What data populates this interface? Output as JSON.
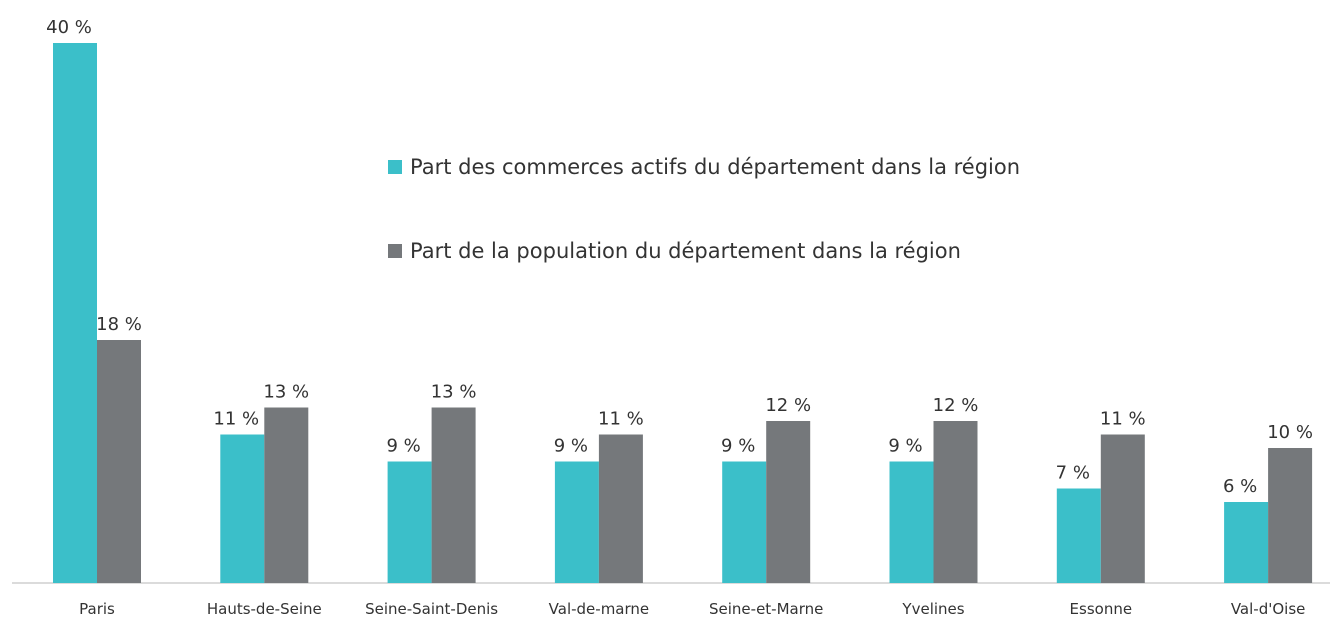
{
  "chart_data": {
    "type": "bar",
    "categories": [
      "Paris",
      "Hauts-de-Seine",
      "Seine-Saint-Denis",
      "Val-de-marne",
      "Seine-et-Marne",
      "Yvelines",
      "Essonne",
      "Val-d'Oise"
    ],
    "series": [
      {
        "name": "Part des commerces actifs du département dans la région",
        "color": "#3bbfc9",
        "values": [
          40,
          11,
          9,
          9,
          9,
          9,
          7,
          6
        ],
        "value_labels": [
          "40 %",
          "11 %",
          "9 %",
          "9 %",
          "9 %",
          "9 %",
          "7 %",
          "6 %"
        ]
      },
      {
        "name": "Part de la population du département dans la région",
        "color": "#75787b",
        "values": [
          18,
          13,
          13,
          11,
          12,
          12,
          11,
          10
        ],
        "value_labels": [
          "18 %",
          "13 %",
          "13 %",
          "11 %",
          "12 %",
          "12 %",
          "11 %",
          "10 %"
        ]
      }
    ]
  }
}
